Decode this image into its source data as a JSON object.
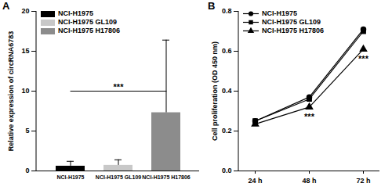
{
  "chart_data": [
    {
      "type": "bar",
      "title": "A",
      "ylabel": "Relative expression of circRNA6783",
      "categories": [
        "NCI-H1975",
        "NCI-H1975 GL109",
        "NCI-H1975 H17806"
      ],
      "values": [
        0.6,
        0.7,
        7.3
      ],
      "errors": [
        0.6,
        0.7,
        9.1
      ],
      "colors": [
        "#000000",
        "#c8c8c8",
        "#8c8c8c"
      ],
      "ylim": [
        0,
        20
      ],
      "yticks": [
        0,
        5,
        10,
        15,
        20
      ],
      "legend": "top-left",
      "annotations": [
        {
          "text": "***",
          "from": "NCI-H1975",
          "to": "NCI-H1975 H17806",
          "y": 10
        }
      ]
    },
    {
      "type": "line",
      "title": "B",
      "ylabel": "Cell proliferation (OD 450 nm)",
      "categories": [
        "24 h",
        "48 h",
        "72 h"
      ],
      "series": [
        {
          "name": "NCI-H1975",
          "color": "#000000",
          "marker": "circle",
          "values": [
            0.25,
            0.37,
            0.71
          ]
        },
        {
          "name": "NCI-H1975 GL109",
          "color": "#000000",
          "marker": "square",
          "values": [
            0.25,
            0.36,
            0.7
          ]
        },
        {
          "name": "NCI-H1975 H17806",
          "color": "#000000",
          "marker": "triangle",
          "values": [
            0.235,
            0.32,
            0.61
          ]
        }
      ],
      "ylim": [
        0,
        0.8
      ],
      "yticks": [
        {
          "value": 0,
          "label": "0.0"
        },
        0.2,
        0.4,
        0.6,
        0.8
      ],
      "legend": "top-left",
      "annotations": [
        {
          "text": "***",
          "x": "48 h"
        },
        {
          "text": "***",
          "x": "72 h"
        }
      ]
    }
  ]
}
